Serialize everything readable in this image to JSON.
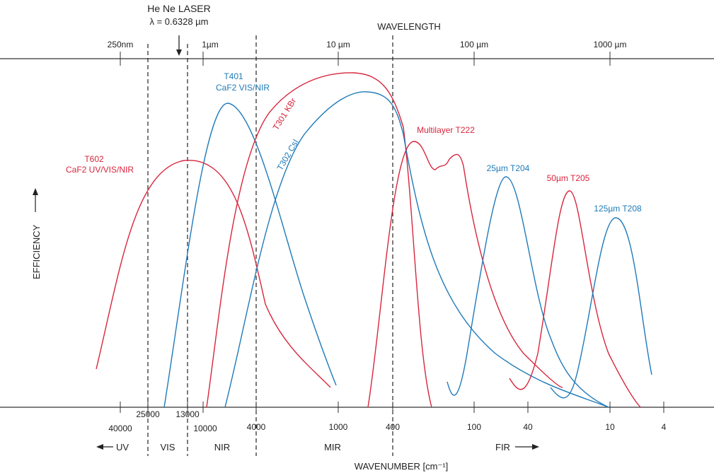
{
  "laser": {
    "title": "He Ne LASER",
    "wavelength": "λ = 0.6328 µm"
  },
  "top_axis": {
    "title": "WAVELENGTH",
    "ticks": [
      "250nm",
      "1µm",
      "10 µm",
      "100 µm",
      "1000 µm"
    ]
  },
  "bottom_axis": {
    "title": "WAVENUMBER [cm⁻¹]",
    "ticks": [
      "40000",
      "25000",
      "13000",
      "10000",
      "4000",
      "1000",
      "400",
      "100",
      "40",
      "10",
      "4"
    ]
  },
  "y_axis": {
    "title": "EFFICIENCY"
  },
  "regions": [
    "UV",
    "VIS",
    "NIR",
    "MIR",
    "FIR"
  ],
  "curves": [
    {
      "name": "T602",
      "detail": "CaF2 UV/VIS/NIR"
    },
    {
      "name": "T401",
      "detail": "CaF2 VIS/NIR"
    },
    {
      "name": "T301 KBr"
    },
    {
      "name": "T302 CsI"
    },
    {
      "name": "Multilayer T222"
    },
    {
      "name": "25µm T204"
    },
    {
      "name": "50µm T205"
    },
    {
      "name": "125µm  T208"
    }
  ]
}
